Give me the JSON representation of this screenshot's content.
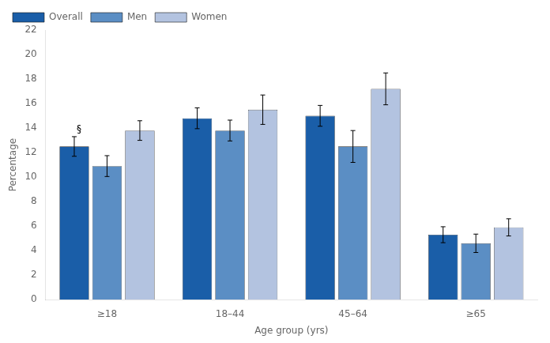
{
  "chart_data": {
    "type": "bar",
    "categories": [
      "≥18",
      "18–44",
      "45–64",
      "≥65"
    ],
    "series": [
      {
        "name": "Overall",
        "color": "#1a5ea8",
        "values": [
          12.5,
          14.8,
          15.0,
          5.3
        ],
        "errors": [
          0.8,
          0.85,
          0.85,
          0.65
        ]
      },
      {
        "name": "Men",
        "color": "#5b8ec4",
        "values": [
          10.9,
          13.8,
          12.5,
          4.6
        ],
        "errors": [
          0.85,
          0.85,
          1.3,
          0.75
        ]
      },
      {
        "name": "Women",
        "color": "#b3c3e0",
        "values": [
          13.8,
          15.5,
          17.2,
          5.9
        ],
        "errors": [
          0.8,
          1.2,
          1.3,
          0.7
        ]
      }
    ],
    "xlabel": "Age group (yrs)",
    "ylabel": "Percentage",
    "ylim": [
      0,
      22
    ],
    "yticks": [
      0,
      2,
      4,
      6,
      8,
      10,
      12,
      14,
      16,
      18,
      20,
      22
    ],
    "grid": false,
    "legend": "upper left",
    "annotations": [
      {
        "text": "§",
        "series": "Overall",
        "category": "≥18"
      }
    ]
  }
}
